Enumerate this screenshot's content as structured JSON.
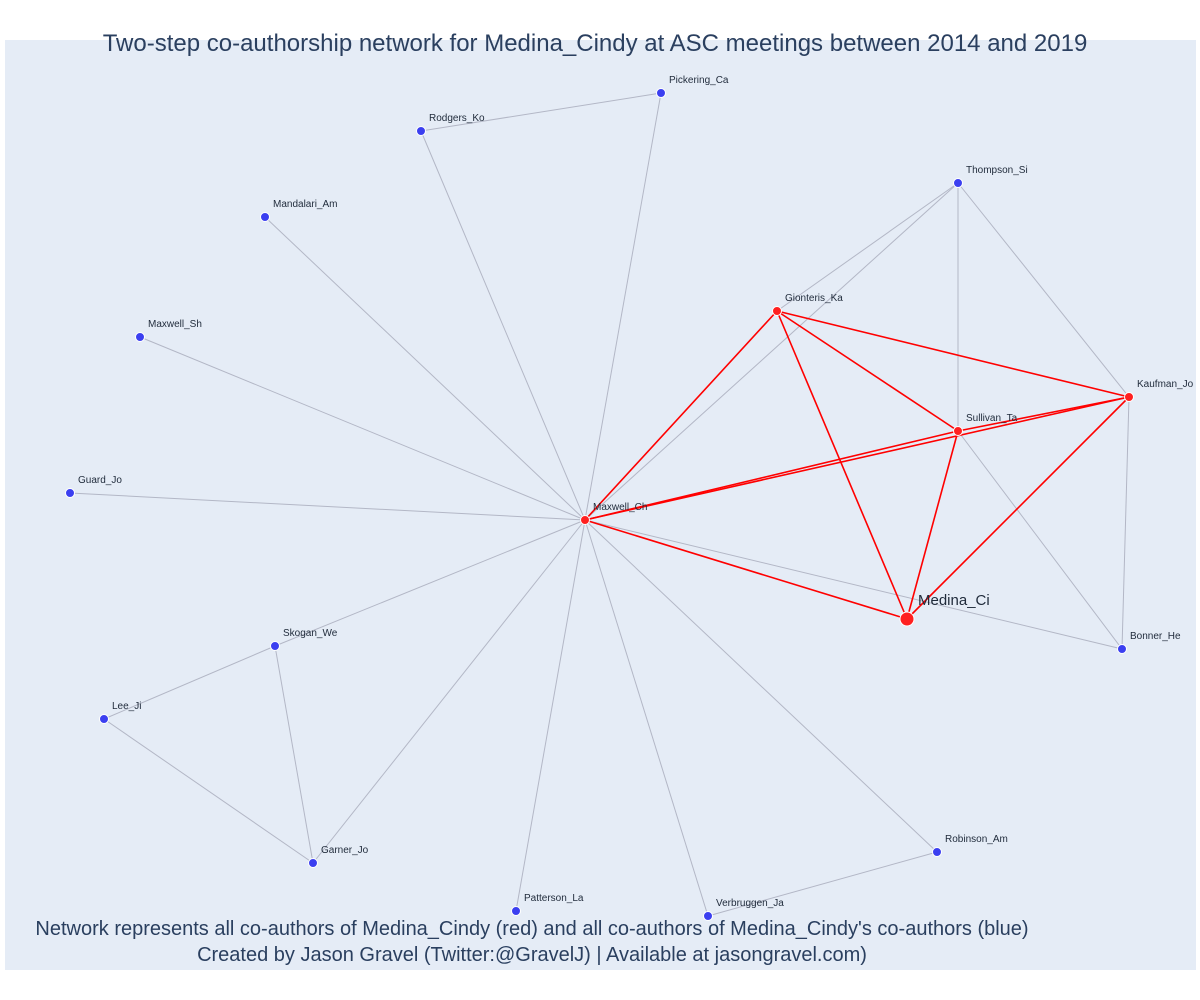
{
  "title": "Two-step co-authorship network for Medina_Cindy at ASC meetings between 2014 and 2019",
  "captions": [
    "Network represents all co-authors of Medina_Cindy (red) and all co-authors of Medina_Cindy's co-authors (blue)",
    "Created by Jason Gravel (Twitter:@GravelJ) | Available at jasongravel.com)"
  ],
  "colors": {
    "background": "#e5ecf6",
    "coauthor": "#ff2020",
    "second_step": "#3b3ff0",
    "edge_red": "#ff0000",
    "edge_gray": "#b3b7c6",
    "text": "#2a3f5f"
  },
  "network": {
    "nodes": [
      {
        "id": "Medina_Ci",
        "label": "Medina_Ci",
        "group": "focal"
      },
      {
        "id": "Maxwell_Ch",
        "label": "Maxwell_Ch",
        "group": "coauthor"
      },
      {
        "id": "Gionteris_Ka",
        "label": "Gionteris_Ka",
        "group": "coauthor"
      },
      {
        "id": "Sullivan_Ta",
        "label": "Sullivan_Ta",
        "group": "coauthor"
      },
      {
        "id": "Kaufman_Jo",
        "label": "Kaufman_Jo",
        "group": "coauthor"
      },
      {
        "id": "Pickering_Ca",
        "label": "Pickering_Ca",
        "group": "second"
      },
      {
        "id": "Rodgers_Ko",
        "label": "Rodgers_Ko",
        "group": "second"
      },
      {
        "id": "Mandalari_Am",
        "label": "Mandalari_Am",
        "group": "second"
      },
      {
        "id": "Maxwell_Sh",
        "label": "Maxwell_Sh",
        "group": "second"
      },
      {
        "id": "Guard_Jo",
        "label": "Guard_Jo",
        "group": "second"
      },
      {
        "id": "Skogan_We",
        "label": "Skogan_We",
        "group": "second"
      },
      {
        "id": "Lee_Ji",
        "label": "Lee_Ji",
        "group": "second"
      },
      {
        "id": "Garner_Jo",
        "label": "Garner_Jo",
        "group": "second"
      },
      {
        "id": "Patterson_La",
        "label": "Patterson_La",
        "group": "second"
      },
      {
        "id": "Verbruggen_Ja",
        "label": "Verbruggen_Ja",
        "group": "second"
      },
      {
        "id": "Robinson_Am",
        "label": "Robinson_Am",
        "group": "second"
      },
      {
        "id": "Bonner_He",
        "label": "Bonner_He",
        "group": "second"
      },
      {
        "id": "Thompson_Si",
        "label": "Thompson_Si",
        "group": "second"
      }
    ],
    "edges": [
      {
        "source": "Medina_Ci",
        "target": "Maxwell_Ch",
        "type": "red"
      },
      {
        "source": "Medina_Ci",
        "target": "Gionteris_Ka",
        "type": "red"
      },
      {
        "source": "Medina_Ci",
        "target": "Sullivan_Ta",
        "type": "red"
      },
      {
        "source": "Medina_Ci",
        "target": "Kaufman_Jo",
        "type": "red"
      },
      {
        "source": "Maxwell_Ch",
        "target": "Gionteris_Ka",
        "type": "red"
      },
      {
        "source": "Maxwell_Ch",
        "target": "Sullivan_Ta",
        "type": "red"
      },
      {
        "source": "Maxwell_Ch",
        "target": "Kaufman_Jo",
        "type": "red"
      },
      {
        "source": "Gionteris_Ka",
        "target": "Sullivan_Ta",
        "type": "red"
      },
      {
        "source": "Gionteris_Ka",
        "target": "Kaufman_Jo",
        "type": "red"
      },
      {
        "source": "Sullivan_Ta",
        "target": "Kaufman_Jo",
        "type": "red"
      },
      {
        "source": "Maxwell_Ch",
        "target": "Pickering_Ca",
        "type": "gray"
      },
      {
        "source": "Maxwell_Ch",
        "target": "Rodgers_Ko",
        "type": "gray"
      },
      {
        "source": "Rodgers_Ko",
        "target": "Pickering_Ca",
        "type": "gray"
      },
      {
        "source": "Maxwell_Ch",
        "target": "Mandalari_Am",
        "type": "gray"
      },
      {
        "source": "Maxwell_Ch",
        "target": "Maxwell_Sh",
        "type": "gray"
      },
      {
        "source": "Maxwell_Ch",
        "target": "Guard_Jo",
        "type": "gray"
      },
      {
        "source": "Maxwell_Ch",
        "target": "Skogan_We",
        "type": "gray"
      },
      {
        "source": "Maxwell_Ch",
        "target": "Garner_Jo",
        "type": "gray"
      },
      {
        "source": "Maxwell_Ch",
        "target": "Patterson_La",
        "type": "gray"
      },
      {
        "source": "Maxwell_Ch",
        "target": "Verbruggen_Ja",
        "type": "gray"
      },
      {
        "source": "Maxwell_Ch",
        "target": "Robinson_Am",
        "type": "gray"
      },
      {
        "source": "Maxwell_Ch",
        "target": "Bonner_He",
        "type": "gray"
      },
      {
        "source": "Maxwell_Ch",
        "target": "Thompson_Si",
        "type": "gray"
      },
      {
        "source": "Skogan_We",
        "target": "Lee_Ji",
        "type": "gray"
      },
      {
        "source": "Skogan_We",
        "target": "Garner_Jo",
        "type": "gray"
      },
      {
        "source": "Lee_Ji",
        "target": "Garner_Jo",
        "type": "gray"
      },
      {
        "source": "Verbruggen_Ja",
        "target": "Robinson_Am",
        "type": "gray"
      },
      {
        "source": "Gionteris_Ka",
        "target": "Thompson_Si",
        "type": "gray"
      },
      {
        "source": "Sullivan_Ta",
        "target": "Thompson_Si",
        "type": "gray"
      },
      {
        "source": "Kaufman_Jo",
        "target": "Thompson_Si",
        "type": "gray"
      },
      {
        "source": "Sullivan_Ta",
        "target": "Bonner_He",
        "type": "gray"
      },
      {
        "source": "Kaufman_Jo",
        "target": "Bonner_He",
        "type": "gray"
      }
    ]
  }
}
